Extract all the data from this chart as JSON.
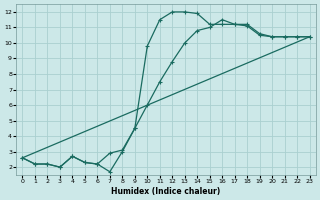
{
  "xlabel": "Humidex (Indice chaleur)",
  "bg_color": "#cce8e8",
  "grid_color": "#aad0d0",
  "line_color": "#1a6b60",
  "xlim": [
    -0.5,
    23.5
  ],
  "ylim": [
    1.5,
    12.5
  ],
  "xticks": [
    0,
    1,
    2,
    3,
    4,
    5,
    6,
    7,
    8,
    9,
    10,
    11,
    12,
    13,
    14,
    15,
    16,
    17,
    18,
    19,
    20,
    21,
    22,
    23
  ],
  "yticks": [
    2,
    3,
    4,
    5,
    6,
    7,
    8,
    9,
    10,
    11,
    12
  ],
  "line1_x": [
    0,
    1,
    2,
    3,
    4,
    5,
    6,
    7,
    8,
    9,
    10,
    11,
    12,
    13,
    14,
    15,
    16,
    17,
    18,
    19,
    20,
    21,
    22,
    23
  ],
  "line1_y": [
    2.6,
    2.2,
    2.2,
    2.0,
    2.7,
    2.3,
    2.2,
    1.7,
    3.0,
    4.5,
    9.8,
    11.5,
    12.0,
    12.0,
    11.9,
    11.2,
    11.2,
    11.2,
    11.2,
    10.6,
    10.4,
    10.4,
    10.4,
    10.4
  ],
  "line2_x": [
    0,
    1,
    2,
    3,
    4,
    5,
    6,
    7,
    8,
    9,
    10,
    11,
    12,
    13,
    14,
    15,
    16,
    17,
    18,
    19,
    20,
    21,
    22,
    23
  ],
  "line2_y": [
    2.6,
    2.2,
    2.2,
    2.0,
    2.7,
    2.3,
    2.2,
    2.9,
    3.1,
    4.5,
    6.0,
    7.5,
    8.8,
    10.0,
    10.8,
    11.0,
    11.5,
    11.2,
    11.1,
    10.5,
    10.4,
    10.4,
    10.4,
    10.4
  ],
  "line3_x": [
    0,
    23
  ],
  "line3_y": [
    2.6,
    10.4
  ]
}
